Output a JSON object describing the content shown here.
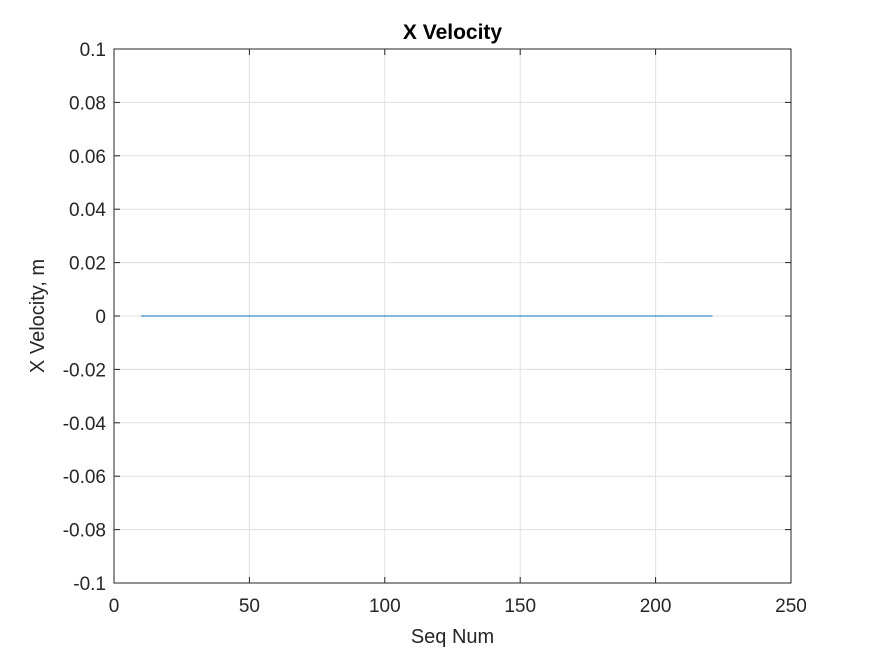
{
  "chart_data": {
    "type": "line",
    "title": "X Velocity",
    "xlabel": "Seq Num",
    "ylabel": "X Velocity, m",
    "xlim": [
      0,
      250
    ],
    "ylim": [
      -0.1,
      0.1
    ],
    "xticks": [
      "0",
      "50",
      "100",
      "150",
      "200",
      "250"
    ],
    "yticks": [
      "-0.1",
      "-0.08",
      "-0.06",
      "-0.04",
      "-0.02",
      "0",
      "0.02",
      "0.04",
      "0.06",
      "0.08",
      "0.1"
    ],
    "grid": true,
    "series": [
      {
        "color": "#0072BD",
        "x": [
          10,
          221
        ],
        "y": [
          0,
          0
        ]
      }
    ]
  }
}
